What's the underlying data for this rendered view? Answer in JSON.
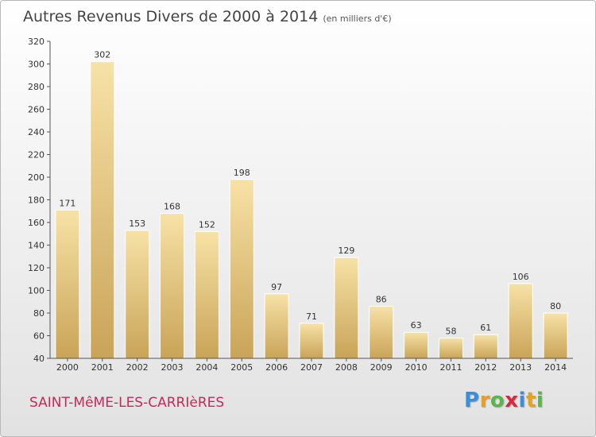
{
  "header": {
    "title": "Autres Revenus Divers de 2000 à 2014",
    "subtitle": "(en milliers d'€)"
  },
  "footer": {
    "commune": "SAINT-MêME-LES-CARRIèRES",
    "logo": {
      "text": "Proxiti",
      "letters": [
        {
          "ch": "P",
          "color": "#3a8fd8"
        },
        {
          "ch": "r",
          "color": "#e8a020"
        },
        {
          "ch": "o",
          "color": "#5ab54a"
        },
        {
          "ch": "x",
          "color": "#d8283c"
        },
        {
          "ch": "i",
          "color": "#3a8fd8"
        },
        {
          "ch": "t",
          "color": "#e8a020"
        },
        {
          "ch": "i",
          "color": "#5ab54a"
        }
      ]
    }
  },
  "chart_data": {
    "type": "bar",
    "title": "Autres Revenus Divers de 2000 à 2014",
    "subtitle": "(en milliers d'€)",
    "categories": [
      "2000",
      "2001",
      "2002",
      "2003",
      "2004",
      "2005",
      "2006",
      "2007",
      "2008",
      "2009",
      "2010",
      "2011",
      "2012",
      "2013",
      "2014"
    ],
    "values": [
      171,
      302,
      153,
      168,
      152,
      198,
      97,
      71,
      129,
      86,
      63,
      58,
      61,
      106,
      80
    ],
    "ylim": [
      40,
      320
    ],
    "yticks": [
      40,
      60,
      80,
      100,
      120,
      140,
      160,
      180,
      200,
      220,
      240,
      260,
      280,
      300,
      320
    ],
    "xlabel": "",
    "ylabel": "",
    "grid": false,
    "data_labels": true,
    "colors": {
      "bar_light": "#f7e2a6",
      "bar_dark": "#c9a458",
      "axis": "#555555"
    }
  }
}
